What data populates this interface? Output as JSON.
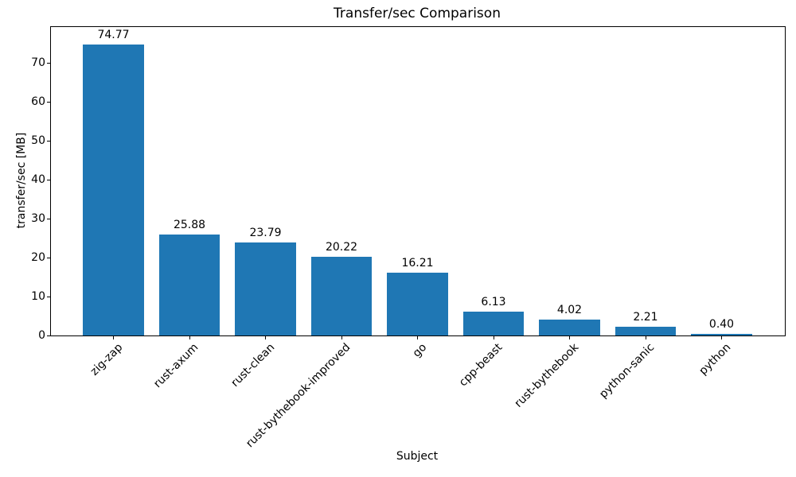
{
  "figure": {
    "title": "Transfer/sec Comparison",
    "xlabel": "Subject",
    "ylabel": "transfer/sec [MB]"
  },
  "chart_data": {
    "type": "bar",
    "title": "Transfer/sec Comparison",
    "xlabel": "Subject",
    "ylabel": "transfer/sec [MB]",
    "categories": [
      "zig-zap",
      "rust-axum",
      "rust-clean",
      "rust-bythebook-improved",
      "go",
      "cpp-beast",
      "rust-bythebook",
      "python-sanic",
      "python"
    ],
    "values": [
      74.77,
      25.88,
      23.79,
      20.22,
      16.21,
      6.13,
      4.02,
      2.21,
      0.4
    ],
    "value_labels": [
      "74.77",
      "25.88",
      "23.79",
      "20.22",
      "16.21",
      "6.13",
      "4.02",
      "2.21",
      "0.40"
    ],
    "yticks": [
      0,
      10,
      20,
      30,
      40,
      50,
      60,
      70
    ],
    "ylim": [
      0,
      79.2
    ],
    "xtick_rotation_deg": 45,
    "bar_color": "#1f77b4",
    "axis_color": "#000000",
    "text_color": "#000000",
    "background_color": "#ffffff",
    "grid": false,
    "legend_position": "none"
  }
}
